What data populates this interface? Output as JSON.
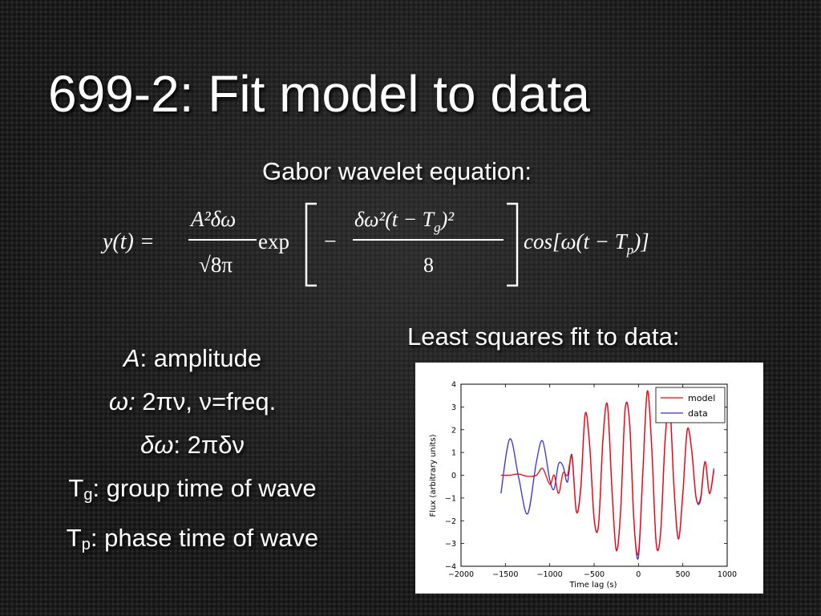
{
  "slide": {
    "title": "699-2: Fit model to data",
    "equation_heading": "Gabor wavelet equation:",
    "fit_heading": "Least squares fit to data:"
  },
  "equation": {
    "lhs": "y(t) =",
    "amp_num": "A²δω",
    "amp_den": "√8π",
    "exp": "exp",
    "minus": "−",
    "exp_num": "δω²(t − T",
    "exp_num_sub": "g",
    "exp_num_end": ")²",
    "exp_den": "8",
    "cos": "cos[ω(t − T",
    "cos_sub": "p",
    "cos_end": ")]"
  },
  "parameters": [
    {
      "symbol": "A",
      "desc": ": amplitude"
    },
    {
      "symbol": "ω:",
      "desc": " 2πν, ν=freq."
    },
    {
      "symbol": "δω",
      "desc": ": 2πδν"
    },
    {
      "symbol": "T",
      "sub": "g",
      "desc": ": group time of wave"
    },
    {
      "symbol": "T",
      "sub": "p",
      "desc": ": phase time of wave"
    }
  ],
  "chart_data": {
    "type": "line",
    "xlabel": "Time lag (s)",
    "ylabel": "Flux (arbitrary units)",
    "xlim": [
      -2000,
      1000
    ],
    "ylim": [
      -4,
      4
    ],
    "xticks": [
      "−2000",
      "−1500",
      "−1000",
      "−500",
      "0",
      "500",
      "1000"
    ],
    "yticks": [
      "−4",
      "−3",
      "−2",
      "−1",
      "0",
      "1",
      "2",
      "3",
      "4"
    ],
    "legend_position": "top-right",
    "series": [
      {
        "name": "model",
        "color": "#ff0000",
        "x": [
          -1550,
          -1450,
          -1350,
          -1250,
          -1150,
          -1080,
          -1000,
          -950,
          -900,
          -850,
          -800,
          -750,
          -700,
          -650,
          -600,
          -550,
          -500,
          -450,
          -400,
          -350,
          -300,
          -250,
          -200,
          -150,
          -100,
          -50,
          0,
          50,
          100,
          150,
          200,
          250,
          300,
          350,
          400,
          450,
          500,
          550,
          600,
          650,
          700,
          750,
          800,
          850
        ],
        "y": [
          0.0,
          0.0,
          0.05,
          -0.05,
          0.0,
          0.3,
          -0.4,
          0.0,
          -0.8,
          0.1,
          0.0,
          0.8,
          -1.6,
          -0.6,
          2.7,
          1.3,
          -1.9,
          -2.2,
          1.6,
          3.1,
          -0.5,
          -3.3,
          -1.5,
          2.9,
          2.3,
          -2.1,
          -3.4,
          0.2,
          3.7,
          1.2,
          -3.0,
          -2.5,
          1.5,
          3.2,
          -0.5,
          -2.8,
          -0.8,
          2.0,
          1.1,
          -1.0,
          -1.0,
          0.6,
          -0.8,
          0.2
        ]
      },
      {
        "name": "data",
        "color": "#3333cc",
        "x": [
          -1550,
          -1450,
          -1350,
          -1250,
          -1150,
          -1080,
          -1000,
          -950,
          -900,
          -850,
          -800,
          -750,
          -700,
          -650,
          -600,
          -550,
          -500,
          -450,
          -400,
          -350,
          -300,
          -250,
          -200,
          -150,
          -100,
          -50,
          0,
          50,
          100,
          150,
          200,
          250,
          300,
          350,
          400,
          450,
          500,
          550,
          600,
          650,
          700,
          750,
          800,
          850
        ],
        "y": [
          -0.8,
          1.6,
          -0.1,
          -1.7,
          0.6,
          1.5,
          -0.2,
          -0.6,
          0.5,
          0.4,
          -0.3,
          0.9,
          -1.6,
          -0.5,
          2.7,
          1.3,
          -1.9,
          -2.2,
          1.6,
          3.1,
          -0.5,
          -3.3,
          -1.5,
          2.9,
          2.3,
          -2.1,
          -3.6,
          0.2,
          3.7,
          1.2,
          -3.0,
          -2.5,
          1.5,
          3.2,
          -0.5,
          -2.8,
          -0.8,
          2.0,
          1.1,
          -1.0,
          -1.1,
          0.6,
          -0.8,
          0.3
        ]
      }
    ]
  }
}
